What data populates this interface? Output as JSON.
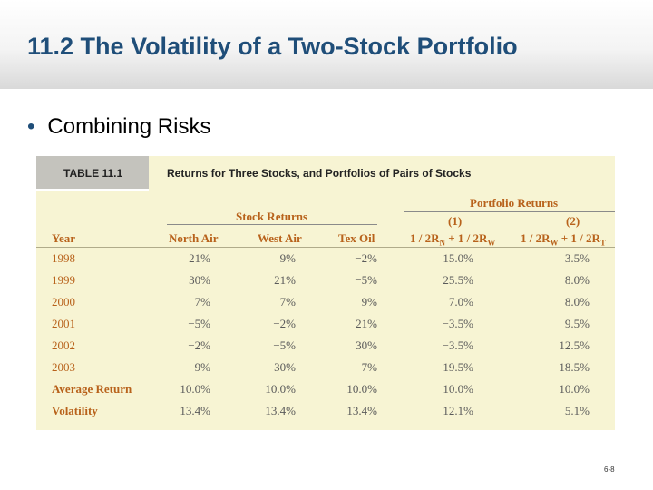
{
  "slide": {
    "title": "11.2 The Volatility of a Two-Stock Portfolio",
    "bullet": "Combining Risks",
    "page_code": "6-8"
  },
  "table": {
    "tab_label": "TABLE 11.1",
    "heading": "Returns for Three Stocks, and Portfolios of Pairs of Stocks",
    "group_headers": {
      "portfolio_returns": "Portfolio Returns",
      "stock_returns": "Stock Returns",
      "col1_number": "(1)",
      "col2_number": "(2)"
    },
    "columns": {
      "year": "Year",
      "north_air": "North Air",
      "west_air": "West Air",
      "tex_oil": "Tex Oil",
      "portfolio1": "1 / 2RN + 1 / 2RW",
      "portfolio2": "1 / 2RW + 1 / 2RT"
    },
    "rows": [
      {
        "label": "1998",
        "north_air": "21%",
        "west_air": "9%",
        "tex_oil": "−2%",
        "p1": "15.0%",
        "p2": "3.5%"
      },
      {
        "label": "1999",
        "north_air": "30%",
        "west_air": "21%",
        "tex_oil": "−5%",
        "p1": "25.5%",
        "p2": "8.0%"
      },
      {
        "label": "2000",
        "north_air": "7%",
        "west_air": "7%",
        "tex_oil": "9%",
        "p1": "7.0%",
        "p2": "8.0%"
      },
      {
        "label": "2001",
        "north_air": "−5%",
        "west_air": "−2%",
        "tex_oil": "21%",
        "p1": "−3.5%",
        "p2": "9.5%"
      },
      {
        "label": "2002",
        "north_air": "−2%",
        "west_air": "−5%",
        "tex_oil": "30%",
        "p1": "−3.5%",
        "p2": "12.5%"
      },
      {
        "label": "2003",
        "north_air": "9%",
        "west_air": "30%",
        "tex_oil": "7%",
        "p1": "19.5%",
        "p2": "18.5%"
      }
    ],
    "summary_rows": [
      {
        "label": "Average Return",
        "north_air": "10.0%",
        "west_air": "10.0%",
        "tex_oil": "10.0%",
        "p1": "10.0%",
        "p2": "10.0%"
      },
      {
        "label": "Volatility",
        "north_air": "13.4%",
        "west_air": "13.4%",
        "tex_oil": "13.4%",
        "p1": "12.1%",
        "p2": "5.1%"
      }
    ]
  }
}
